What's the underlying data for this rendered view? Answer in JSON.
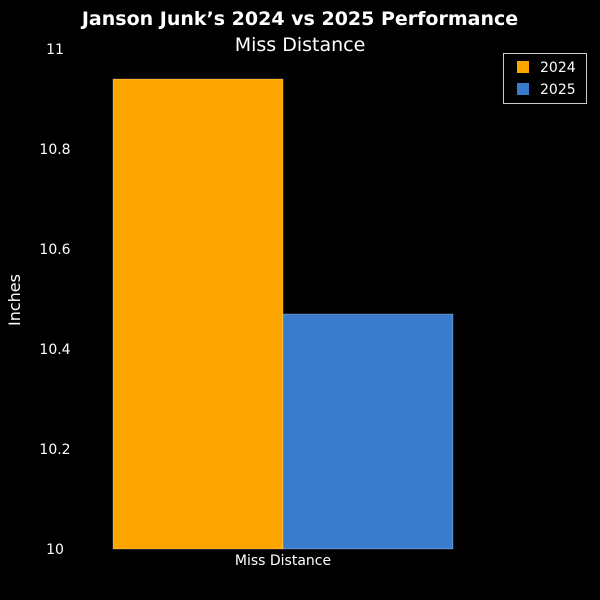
{
  "chart_data": {
    "type": "bar",
    "title": "Janson Junk’s 2024 vs 2025 Performance",
    "subtitle": "Miss Distance",
    "categories": [
      "Miss Distance"
    ],
    "series": [
      {
        "name": "2024",
        "values": [
          10.94
        ],
        "color": "#FFA500"
      },
      {
        "name": "2025",
        "values": [
          10.47
        ],
        "color": "#3A7BCC"
      }
    ],
    "xlabel": "",
    "ylabel": "Inches",
    "ylim": [
      10,
      11
    ],
    "yticks": [
      10,
      10.2,
      10.4,
      10.6,
      10.8,
      11
    ],
    "ytick_labels": [
      "10",
      "10.2",
      "10.4",
      "10.6",
      "10.8",
      "11"
    ],
    "grid": false,
    "legend_position": "top-right",
    "background": "#000000"
  }
}
